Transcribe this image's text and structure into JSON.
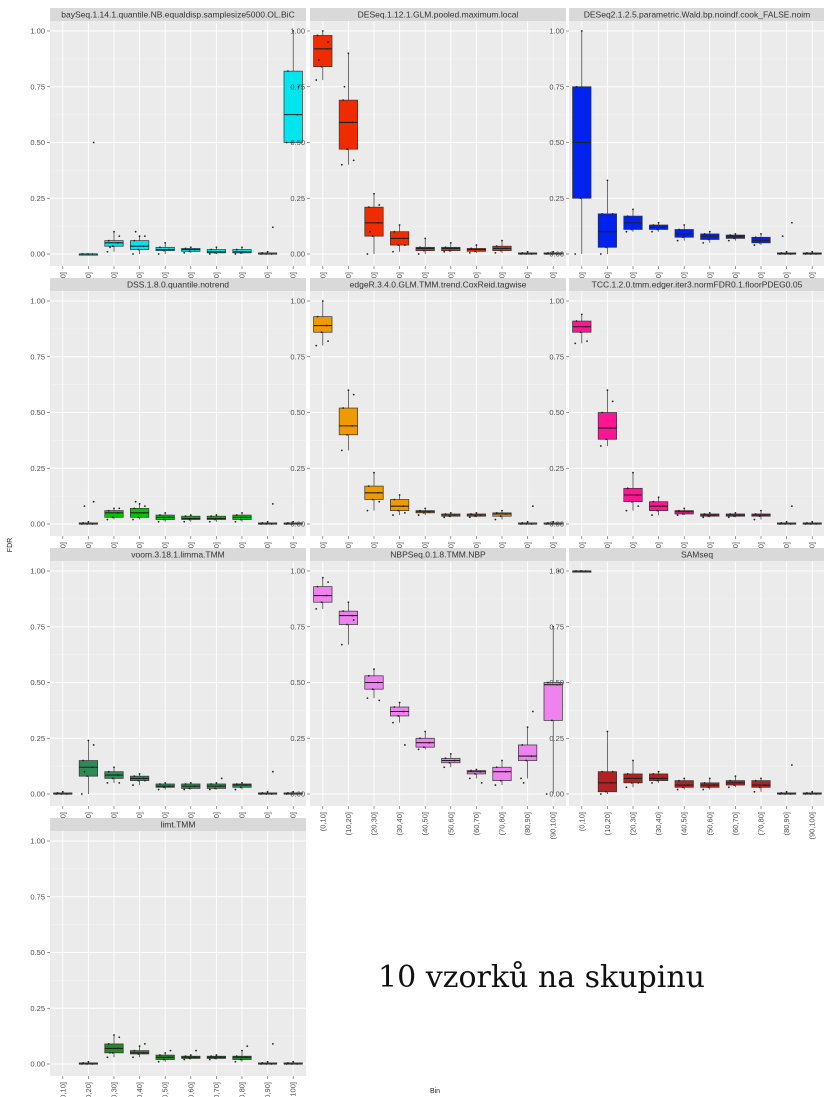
{
  "figure": {
    "ylabel": "FDR",
    "xlabel": "Bin",
    "caption": "10 vzorků na skupinu"
  },
  "chart_data": [
    {
      "type": "box",
      "title": "baySeq.1.14.1.quantile.NB.equaldisp.samplesize5000.OL.BiC",
      "categories": [
        "(0,10]",
        "(10,20]",
        "(20,30]",
        "(30,40]",
        "(40,50]",
        "(50,60]",
        "(60,70]",
        "(70,80]",
        "(80,90]",
        "(90,100]"
      ],
      "ylim": [
        0,
        1
      ],
      "yticks": [
        "0.00",
        "0.25",
        "0.50",
        "0.75",
        "1.00"
      ],
      "color": "#00e5ee",
      "boxes": [
        null,
        [
          0,
          0,
          0,
          0,
          0
        ],
        [
          0.01,
          0.035,
          0.05,
          0.06,
          0.1
        ],
        [
          0,
          0.02,
          0.035,
          0.06,
          0.08
        ],
        [
          0,
          0.015,
          0.02,
          0.03,
          0.05
        ],
        [
          0.005,
          0.012,
          0.02,
          0.025,
          0.03
        ],
        [
          0,
          0.005,
          0.01,
          0.02,
          0.03
        ],
        [
          0,
          0.005,
          0.01,
          0.02,
          0.03
        ],
        [
          0,
          0,
          0,
          0.005,
          0.01
        ],
        [
          0.5,
          0.5,
          0.625,
          0.82,
          1.0
        ]
      ],
      "outliers": [
        [],
        [
          0.5
        ],
        [
          0.08,
          0.03
        ],
        [
          0.08,
          0.1
        ],
        [],
        [],
        [],
        [],
        [
          0.12
        ],
        [
          0.75
        ]
      ]
    },
    {
      "type": "box",
      "title": "DESeq.1.12.1.GLM.pooled.maximum.local",
      "categories": [
        "(0,10]",
        "(10,20]",
        "(20,30]",
        "(30,40]",
        "(40,50]",
        "(50,60]",
        "(60,70]",
        "(70,80]",
        "(80,90]",
        "(90,100]"
      ],
      "ylim": [
        0,
        1
      ],
      "yticks": [
        "0.00",
        "0.25",
        "0.50",
        "0.75",
        "1.00"
      ],
      "color": "#ee2c00",
      "boxes": [
        [
          0.78,
          0.84,
          0.92,
          0.98,
          1.0
        ],
        [
          0.4,
          0.47,
          0.59,
          0.69,
          0.9
        ],
        [
          0,
          0.08,
          0.14,
          0.21,
          0.27
        ],
        [
          0.01,
          0.04,
          0.07,
          0.1,
          0.13
        ],
        [
          0,
          0.015,
          0.025,
          0.03,
          0.07
        ],
        [
          0.01,
          0.015,
          0.025,
          0.03,
          0.05
        ],
        [
          0.005,
          0.012,
          0.02,
          0.025,
          0.04
        ],
        [
          0.005,
          0.015,
          0.025,
          0.035,
          0.06
        ],
        [
          0,
          0,
          0,
          0.005,
          0.01
        ],
        [
          0,
          0,
          0,
          0.005,
          0.01
        ]
      ],
      "outliers": [
        [
          0.95,
          0.87
        ],
        [
          0.42,
          0.75
        ],
        [
          0.22,
          0.1
        ],
        [
          0.04
        ],
        [],
        [],
        [],
        [],
        [],
        []
      ]
    },
    {
      "type": "box",
      "title": "DESeq2.1.2.5.parametric.Wald.bp.noindf.cook_FALSE.noim",
      "categories": [
        "(0,10]",
        "(10,20]",
        "(20,30]",
        "(30,40]",
        "(40,50]",
        "(50,60]",
        "(60,70]",
        "(70,80]",
        "(80,90]",
        "(90,100]"
      ],
      "ylim": [
        0,
        1
      ],
      "yticks": [
        "0.00",
        "0.25",
        "0.50",
        "0.75",
        "1.00"
      ],
      "color": "#0022ee",
      "boxes": [
        [
          0,
          0.25,
          0.5,
          0.75,
          1.0
        ],
        [
          0,
          0.03,
          0.1,
          0.18,
          0.33
        ],
        [
          0.1,
          0.11,
          0.14,
          0.17,
          0.2
        ],
        [
          0.1,
          0.11,
          0.12,
          0.13,
          0.14
        ],
        [
          0.06,
          0.075,
          0.09,
          0.11,
          0.13
        ],
        [
          0.05,
          0.065,
          0.08,
          0.09,
          0.1
        ],
        [
          0.06,
          0.07,
          0.08,
          0.085,
          0.09
        ],
        [
          0.04,
          0.05,
          0.06,
          0.075,
          0.09
        ],
        [
          0,
          0,
          0,
          0.005,
          0.01
        ],
        [
          0,
          0,
          0,
          0.005,
          0.01
        ]
      ],
      "outliers": [
        [],
        [
          0.18
        ],
        [],
        [],
        [],
        [],
        [],
        [],
        [
          0.14,
          0.08
        ],
        []
      ]
    },
    {
      "type": "box",
      "title": "DSS.1.8.0.quantile.notrend",
      "categories": [
        "(0,10]",
        "(10,20]",
        "(20,30]",
        "(30,40]",
        "(40,50]",
        "(50,60]",
        "(60,70]",
        "(70,80]",
        "(80,90]",
        "(90,100]"
      ],
      "ylim": [
        0,
        1
      ],
      "yticks": [
        "0.00",
        "0.25",
        "0.50",
        "0.75",
        "1.00"
      ],
      "color": "#00c800",
      "boxes": [
        null,
        [
          0,
          0,
          0,
          0.005,
          0.01
        ],
        [
          0.02,
          0.03,
          0.05,
          0.06,
          0.07
        ],
        [
          0.02,
          0.03,
          0.05,
          0.07,
          0.09
        ],
        [
          0.01,
          0.02,
          0.03,
          0.04,
          0.05
        ],
        [
          0.01,
          0.02,
          0.025,
          0.035,
          0.04
        ],
        [
          0.01,
          0.02,
          0.025,
          0.035,
          0.04
        ],
        [
          0.01,
          0.02,
          0.03,
          0.04,
          0.05
        ],
        [
          0,
          0,
          0,
          0.005,
          0.01
        ],
        [
          0,
          0,
          0,
          0.005,
          0.01
        ]
      ],
      "outliers": [
        [],
        [
          0.1,
          0.08
        ],
        [
          0.07
        ],
        [
          0.08,
          0.1
        ],
        [],
        [],
        [],
        [],
        [
          0.09
        ],
        []
      ]
    },
    {
      "type": "box",
      "title": "edgeR.3.4.0.GLM.TMM.trend.CoxReid.tagwise",
      "categories": [
        "(0,10]",
        "(10,20]",
        "(20,30]",
        "(30,40]",
        "(40,50]",
        "(50,60]",
        "(60,70]",
        "(70,80]",
        "(80,90]",
        "(90,100]"
      ],
      "ylim": [
        0,
        1
      ],
      "yticks": [
        "0.00",
        "0.25",
        "0.50",
        "0.75",
        "1.00"
      ],
      "color": "#ee9a00",
      "boxes": [
        [
          0.8,
          0.86,
          0.89,
          0.93,
          1.0
        ],
        [
          0.33,
          0.4,
          0.44,
          0.52,
          0.6
        ],
        [
          0.06,
          0.11,
          0.14,
          0.17,
          0.23
        ],
        [
          0.04,
          0.06,
          0.08,
          0.11,
          0.13
        ],
        [
          0.04,
          0.05,
          0.055,
          0.06,
          0.07
        ],
        [
          0.03,
          0.035,
          0.04,
          0.045,
          0.05
        ],
        [
          0.03,
          0.035,
          0.04,
          0.045,
          0.05
        ],
        [
          0.02,
          0.035,
          0.045,
          0.05,
          0.06
        ],
        [
          0,
          0,
          0,
          0.005,
          0.01
        ],
        [
          0,
          0,
          0,
          0.005,
          0.01
        ]
      ],
      "outliers": [
        [
          0.82
        ],
        [
          0.58
        ],
        [
          0.1
        ],
        [
          0.05
        ],
        [],
        [],
        [],
        [],
        [
          0.08
        ],
        []
      ]
    },
    {
      "type": "box",
      "title": "TCC.1.2.0.tmm.edger.iter3.normFDR0.1.floorPDEG0.05",
      "categories": [
        "(0,10]",
        "(10,20]",
        "(20,30]",
        "(30,40]",
        "(40,50]",
        "(50,60]",
        "(60,70]",
        "(70,80]",
        "(80,90]",
        "(90,100]"
      ],
      "ylim": [
        0,
        1
      ],
      "yticks": [
        "0.00",
        "0.25",
        "0.50",
        "0.75",
        "1.00"
      ],
      "color": "#ff1493",
      "boxes": [
        [
          0.81,
          0.86,
          0.885,
          0.91,
          0.94
        ],
        [
          0.35,
          0.38,
          0.43,
          0.5,
          0.6
        ],
        [
          0.06,
          0.1,
          0.13,
          0.16,
          0.23
        ],
        [
          0.04,
          0.06,
          0.08,
          0.1,
          0.12
        ],
        [
          0.04,
          0.045,
          0.055,
          0.06,
          0.07
        ],
        [
          0.03,
          0.035,
          0.04,
          0.045,
          0.05
        ],
        [
          0.03,
          0.035,
          0.04,
          0.045,
          0.05
        ],
        [
          0.02,
          0.035,
          0.04,
          0.045,
          0.06
        ],
        [
          0,
          0,
          0,
          0.005,
          0.01
        ],
        [
          0,
          0,
          0,
          0.005,
          0.01
        ]
      ],
      "outliers": [
        [
          0.82
        ],
        [
          0.55
        ],
        [
          0.08
        ],
        [],
        [],
        [],
        [],
        [],
        [
          0.08
        ],
        []
      ]
    },
    {
      "type": "box",
      "title": "voom.3.18.1.limma.TMM",
      "categories": [
        "(0,10]",
        "(10,20]",
        "(20,30]",
        "(30,40]",
        "(40,50]",
        "(50,60]",
        "(60,70]",
        "(70,80]",
        "(80,90]",
        "(90,100]"
      ],
      "ylim": [
        0,
        1
      ],
      "yticks": [
        "0.00",
        "0.25",
        "0.50",
        "0.75",
        "1.00"
      ],
      "color": "#2e8b57",
      "boxes": [
        [
          0,
          0,
          0,
          0.005,
          0.01
        ],
        [
          0,
          0.08,
          0.12,
          0.15,
          0.24
        ],
        [
          0.05,
          0.07,
          0.085,
          0.1,
          0.12
        ],
        [
          0.04,
          0.06,
          0.07,
          0.08,
          0.09
        ],
        [
          0.02,
          0.03,
          0.035,
          0.045,
          0.05
        ],
        [
          0.02,
          0.025,
          0.035,
          0.045,
          0.05
        ],
        [
          0.02,
          0.025,
          0.035,
          0.045,
          0.05
        ],
        [
          0.02,
          0.03,
          0.04,
          0.045,
          0.05
        ],
        [
          0,
          0,
          0,
          0.005,
          0.01
        ],
        [
          0,
          0,
          0,
          0.005,
          0.01
        ]
      ],
      "outliers": [
        [],
        [
          0.22,
          0.1
        ],
        [
          0.05
        ],
        [
          0.06
        ],
        [],
        [],
        [
          0.07
        ],
        [],
        [
          0.1
        ],
        []
      ]
    },
    {
      "type": "box",
      "title": "NBPSeq.0.1.8.TMM.NBP",
      "categories": [
        "(0,10]",
        "(10,20]",
        "(20,30]",
        "(30,40]",
        "(40,50]",
        "(50,60]",
        "(60,70]",
        "(70,80]",
        "(80,90]",
        "(90,100]"
      ],
      "ylim": [
        0,
        1
      ],
      "yticks": [
        "0.00",
        "0.25",
        "0.50",
        "0.75",
        "1.00"
      ],
      "color": "#ee82ee",
      "boxes": [
        [
          0.83,
          0.86,
          0.89,
          0.93,
          0.97
        ],
        [
          0.67,
          0.76,
          0.8,
          0.82,
          0.86
        ],
        [
          0.43,
          0.47,
          0.5,
          0.53,
          0.56
        ],
        [
          0.32,
          0.35,
          0.37,
          0.39,
          0.41
        ],
        [
          0.2,
          0.21,
          0.23,
          0.25,
          0.28
        ],
        [
          0.12,
          0.14,
          0.15,
          0.16,
          0.18
        ],
        [
          0.07,
          0.09,
          0.1,
          0.105,
          0.11
        ],
        [
          0.04,
          0.06,
          0.1,
          0.12,
          0.15
        ],
        [
          0.07,
          0.15,
          0.17,
          0.22,
          0.3
        ],
        [
          0,
          0.33,
          0.49,
          0.5,
          0.75
        ]
      ],
      "outliers": [
        [
          0.95
        ],
        [
          0.78
        ],
        [
          0.42
        ],
        [
          0.22
        ],
        [],
        [],
        [
          0.05
        ],
        [],
        [
          0.37,
          0.05
        ],
        [
          1.0
        ]
      ]
    },
    {
      "type": "box",
      "title": "SAMseq",
      "categories": [
        "(0,10]",
        "(10,20]",
        "(20,30]",
        "(30,40]",
        "(40,50]",
        "(50,60]",
        "(60,70]",
        "(70,80]",
        "(80,90]",
        "(90,100]"
      ],
      "ylim": [
        0,
        1
      ],
      "yticks": [
        "0.00",
        "0.25",
        "0.50",
        "0.75",
        "1.00"
      ],
      "color": "#b22222",
      "boxes": [
        [
          1.0,
          1.0,
          1.0,
          1.0,
          1.0
        ],
        [
          0,
          0.01,
          0.05,
          0.1,
          0.28
        ],
        [
          0.03,
          0.05,
          0.07,
          0.09,
          0.15
        ],
        [
          0.05,
          0.06,
          0.07,
          0.09,
          0.1
        ],
        [
          0.02,
          0.03,
          0.04,
          0.06,
          0.07
        ],
        [
          0.02,
          0.03,
          0.04,
          0.05,
          0.07
        ],
        [
          0.03,
          0.04,
          0.05,
          0.06,
          0.08
        ],
        [
          0.01,
          0.03,
          0.04,
          0.06,
          0.07
        ],
        [
          0,
          0,
          0,
          0.005,
          0.01
        ],
        [
          0,
          0,
          0,
          0.005,
          0.01
        ]
      ],
      "outliers": [
        [],
        [
          0.1
        ],
        [
          0.05
        ],
        [],
        [],
        [],
        [],
        [],
        [
          0.13
        ],
        []
      ]
    },
    {
      "type": "box",
      "title": "limt.TMM",
      "categories": [
        "(0,10]",
        "(10,20]",
        "(20,30]",
        "(30,40]",
        "(40,50]",
        "(50,60]",
        "(60,70]",
        "(70,80]",
        "(80,90]",
        "(90,100]"
      ],
      "ylim": [
        0,
        1
      ],
      "yticks": [
        "0.00",
        "0.25",
        "0.50",
        "0.75",
        "1.00"
      ],
      "color": "#228b22",
      "boxes": [
        null,
        [
          0,
          0,
          0,
          0.005,
          0.01
        ],
        [
          0.03,
          0.05,
          0.07,
          0.09,
          0.13
        ],
        [
          0.03,
          0.045,
          0.05,
          0.06,
          0.08
        ],
        [
          0.01,
          0.02,
          0.03,
          0.04,
          0.05
        ],
        [
          0.02,
          0.025,
          0.03,
          0.035,
          0.04
        ],
        [
          0.02,
          0.025,
          0.03,
          0.035,
          0.04
        ],
        [
          0.01,
          0.02,
          0.03,
          0.035,
          0.06
        ],
        [
          0,
          0,
          0,
          0.005,
          0.01
        ],
        [
          0,
          0,
          0,
          0.005,
          0.01
        ]
      ],
      "outliers": [
        [],
        [],
        [
          0.12,
          0.05
        ],
        [
          0.09
        ],
        [
          0.06
        ],
        [
          0.06
        ],
        [],
        [
          0.08
        ],
        [
          0.09
        ],
        []
      ]
    }
  ]
}
